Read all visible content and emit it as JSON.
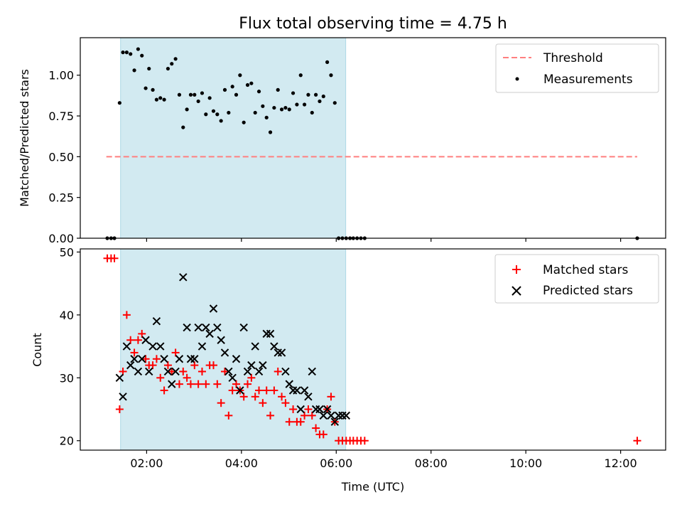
{
  "figure": {
    "title": "Flux total observing time = 4.75 h",
    "x_label": "Time (UTC)",
    "x_ticks": [
      "02:00",
      "04:00",
      "06:00",
      "08:00",
      "10:00",
      "12:00"
    ]
  },
  "chart_data": [
    {
      "type": "scatter",
      "panel": "top",
      "ylabel": "Matched/Predicted stars",
      "xlim_hours": [
        0.6,
        12.95
      ],
      "ylim": [
        0,
        1.23
      ],
      "y_ticks": [
        "0.00",
        "0.25",
        "0.50",
        "0.75",
        "1.00"
      ],
      "shaded_interval_hours": [
        1.45,
        6.2
      ],
      "shade_color": "#add8e6",
      "legend_position": "upper right",
      "threshold": {
        "name": "Threshold",
        "y": 0.5,
        "x_range_hours": [
          1.15,
          12.35
        ],
        "color": "#ff7f7f",
        "style": "dashed"
      },
      "series": [
        {
          "name": "Measurements",
          "marker": "dot",
          "color": "#000000",
          "x": [
            1.17,
            1.25,
            1.32,
            1.43,
            1.5,
            1.58,
            1.66,
            1.74,
            1.82,
            1.9,
            1.98,
            2.05,
            2.13,
            2.21,
            2.29,
            2.37,
            2.45,
            2.53,
            2.61,
            2.69,
            2.77,
            2.85,
            2.93,
            3.01,
            3.09,
            3.17,
            3.25,
            3.33,
            3.41,
            3.49,
            3.57,
            3.65,
            3.73,
            3.81,
            3.89,
            3.97,
            4.05,
            4.13,
            4.21,
            4.29,
            4.37,
            4.45,
            4.53,
            4.61,
            4.69,
            4.77,
            4.85,
            4.93,
            5.01,
            5.09,
            5.17,
            5.25,
            5.33,
            5.41,
            5.49,
            5.57,
            5.65,
            5.73,
            5.81,
            5.89,
            5.97,
            6.05,
            6.13,
            6.21,
            6.29,
            6.36,
            6.44,
            6.52,
            6.6,
            12.35
          ],
          "y": [
            0,
            0,
            0,
            0.83,
            1.14,
            1.14,
            1.13,
            1.03,
            1.16,
            1.12,
            0.92,
            1.04,
            0.91,
            0.85,
            0.86,
            0.85,
            1.04,
            1.07,
            1.1,
            0.88,
            0.68,
            0.79,
            0.88,
            0.88,
            0.84,
            0.89,
            0.76,
            0.86,
            0.78,
            0.76,
            0.72,
            0.91,
            0.77,
            0.93,
            0.88,
            1.0,
            0.71,
            0.94,
            0.95,
            0.77,
            0.9,
            0.81,
            0.74,
            0.65,
            0.8,
            0.91,
            0.79,
            0.8,
            0.79,
            0.89,
            0.82,
            1.0,
            0.82,
            0.88,
            0.77,
            0.88,
            0.84,
            0.87,
            1.08,
            1.0,
            0.83,
            0,
            0,
            0,
            0,
            0,
            0,
            0,
            0,
            0
          ]
        }
      ]
    },
    {
      "type": "scatter",
      "panel": "bottom",
      "ylabel": "Count",
      "xlim_hours": [
        0.6,
        12.95
      ],
      "ylim": [
        18.5,
        50.5
      ],
      "y_ticks": [
        "20",
        "30",
        "40",
        "50"
      ],
      "shaded_interval_hours": [
        1.45,
        6.2
      ],
      "shade_color": "#add8e6",
      "legend_position": "upper right",
      "series": [
        {
          "name": "Matched stars",
          "marker": "plus",
          "color": "#ff0000",
          "x": [
            1.17,
            1.25,
            1.32,
            1.43,
            1.5,
            1.58,
            1.66,
            1.74,
            1.82,
            1.9,
            1.98,
            2.05,
            2.13,
            2.21,
            2.29,
            2.37,
            2.45,
            2.53,
            2.61,
            2.69,
            2.77,
            2.85,
            2.93,
            3.01,
            3.09,
            3.17,
            3.25,
            3.33,
            3.41,
            3.49,
            3.57,
            3.65,
            3.73,
            3.81,
            3.89,
            3.97,
            4.05,
            4.13,
            4.21,
            4.29,
            4.37,
            4.45,
            4.53,
            4.61,
            4.69,
            4.77,
            4.85,
            4.93,
            5.01,
            5.09,
            5.17,
            5.25,
            5.33,
            5.41,
            5.49,
            5.57,
            5.65,
            5.73,
            5.81,
            5.89,
            5.97,
            6.05,
            6.13,
            6.21,
            6.29,
            6.36,
            6.44,
            6.52,
            6.6,
            12.35
          ],
          "y": [
            49,
            49,
            49,
            25,
            31,
            40,
            36,
            34,
            36,
            37,
            33,
            32,
            32,
            33,
            30,
            28,
            32,
            31,
            34,
            29,
            31,
            30,
            29,
            32,
            29,
            31,
            29,
            32,
            32,
            29,
            26,
            31,
            24,
            28,
            29,
            28,
            27,
            29,
            30,
            27,
            28,
            26,
            28,
            24,
            28,
            31,
            27,
            26,
            23,
            25,
            23,
            23,
            24,
            25,
            24,
            22,
            21,
            21,
            25,
            27,
            23,
            20,
            20,
            20,
            20,
            20,
            20,
            20,
            20,
            20
          ]
        },
        {
          "name": "Predicted stars",
          "marker": "x",
          "color": "#000000",
          "x": [
            1.43,
            1.5,
            1.58,
            1.66,
            1.74,
            1.82,
            1.9,
            1.98,
            2.05,
            2.13,
            2.21,
            2.29,
            2.37,
            2.45,
            2.53,
            2.61,
            2.69,
            2.77,
            2.85,
            2.93,
            3.01,
            3.09,
            3.17,
            3.25,
            3.33,
            3.41,
            3.49,
            3.57,
            3.65,
            3.73,
            3.81,
            3.89,
            3.97,
            4.05,
            4.13,
            4.21,
            4.29,
            4.37,
            4.45,
            4.53,
            4.61,
            4.69,
            4.77,
            4.85,
            4.93,
            5.01,
            5.09,
            5.17,
            5.25,
            5.33,
            5.41,
            5.49,
            5.57,
            5.65,
            5.73,
            5.81,
            5.89,
            5.97,
            6.05,
            6.13,
            6.21
          ],
          "y": [
            30,
            27,
            35,
            32,
            33,
            31,
            33,
            36,
            31,
            35,
            39,
            35,
            33,
            31,
            29,
            31,
            33,
            46,
            38,
            33,
            33,
            38,
            35,
            38,
            37,
            41,
            38,
            36,
            34,
            31,
            30,
            33,
            28,
            38,
            31,
            32,
            35,
            31,
            32,
            37,
            37,
            35,
            34,
            34,
            31,
            29,
            28,
            28,
            25,
            28,
            27,
            31,
            25,
            25,
            24,
            25,
            24,
            23,
            24,
            24,
            24
          ]
        }
      ]
    }
  ]
}
